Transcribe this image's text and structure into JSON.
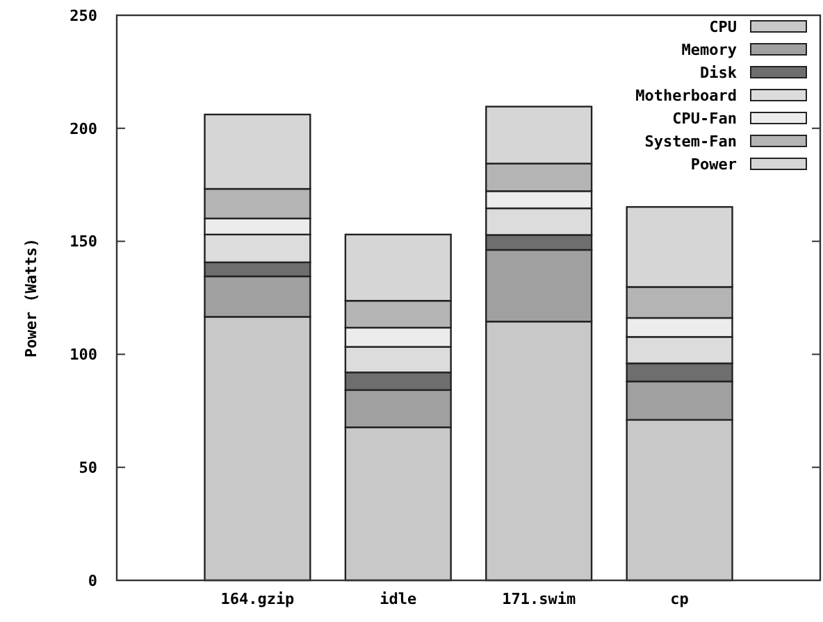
{
  "chart_data": {
    "type": "bar",
    "stacked": true,
    "ylabel": "Power (Watts)",
    "categories": [
      "164.gzip",
      "idle",
      "171.swim",
      "cp"
    ],
    "series": [
      {
        "name": "CPU",
        "color": "#c8c8c8",
        "values": [
          116.6,
          67.7,
          114.5,
          71
        ]
      },
      {
        "name": "Memory",
        "color": "#a0a0a0",
        "values": [
          17.9,
          16.5,
          31.7,
          17
        ]
      },
      {
        "name": "Disk",
        "color": "#6e6e6e",
        "values": [
          6.2,
          7.8,
          6.6,
          8
        ]
      },
      {
        "name": "Motherboard",
        "color": "#dcdcdc",
        "values": [
          12.3,
          11.3,
          11.8,
          11.7
        ]
      },
      {
        "name": "CPU-Fan",
        "color": "#ececec",
        "values": [
          7.1,
          8.5,
          7.6,
          8.4
        ]
      },
      {
        "name": "System-Fan",
        "color": "#b4b4b4",
        "values": [
          13.1,
          11.9,
          12.2,
          13.7
        ]
      },
      {
        "name": "Power",
        "color": "#d6d6d6",
        "values": [
          32.9,
          29.3,
          25.2,
          35.4
        ]
      }
    ],
    "ylim": [
      0,
      250
    ],
    "yticks": [
      0,
      50,
      100,
      150,
      200,
      250
    ],
    "grid": false,
    "legend": "top right"
  }
}
